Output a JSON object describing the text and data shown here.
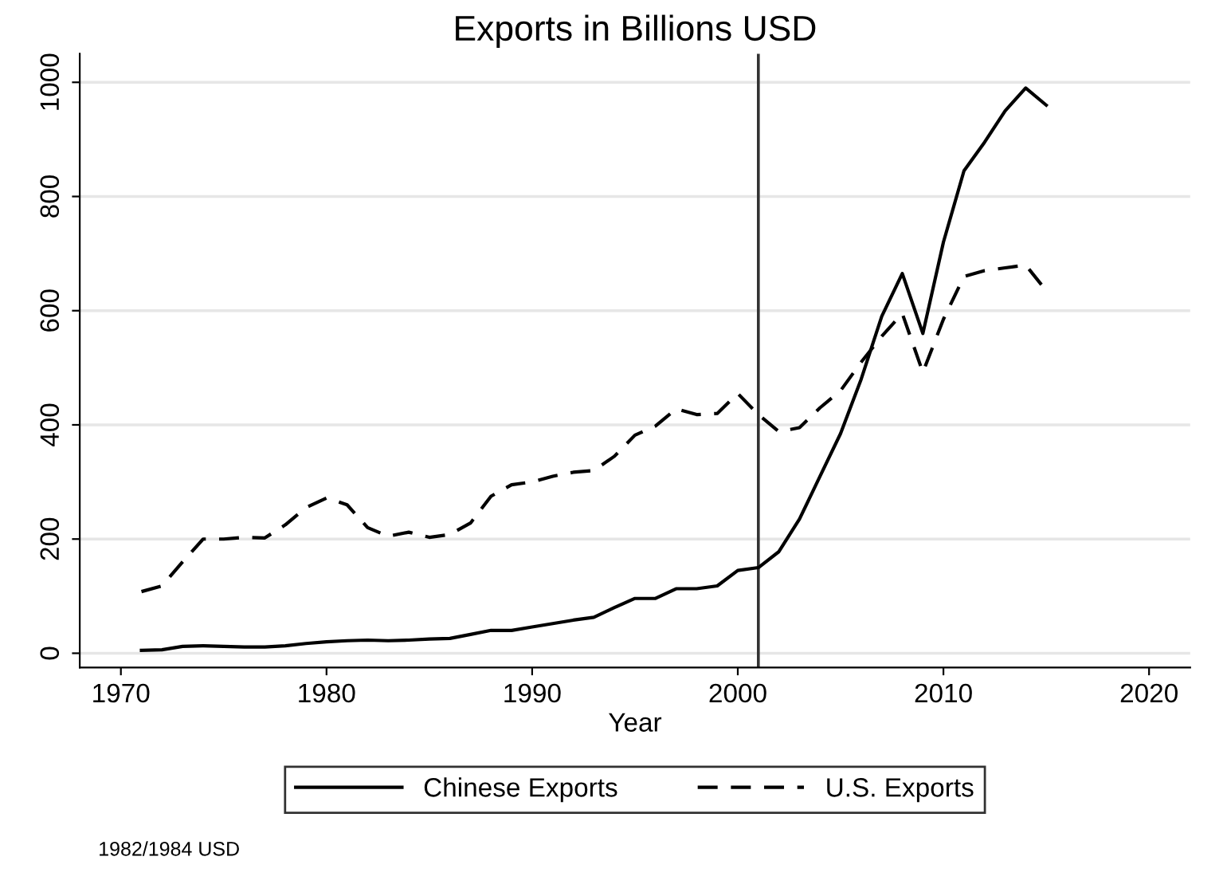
{
  "chart_data": {
    "type": "line",
    "title": "Exports in Billions USD",
    "xlabel": "Year",
    "x": [
      1971,
      1972,
      1973,
      1974,
      1975,
      1976,
      1977,
      1978,
      1979,
      1980,
      1981,
      1982,
      1983,
      1984,
      1985,
      1986,
      1987,
      1988,
      1989,
      1990,
      1991,
      1992,
      1993,
      1994,
      1995,
      1996,
      1997,
      1998,
      1999,
      2000,
      2001,
      2002,
      2003,
      2004,
      2005,
      2006,
      2007,
      2008,
      2009,
      2010,
      2011,
      2012,
      2013,
      2014,
      2015
    ],
    "series": [
      {
        "name": "Chinese Exports",
        "color": "#000000",
        "line_style": "solid",
        "values": [
          5,
          6,
          12,
          13,
          12,
          11,
          11,
          13,
          17,
          20,
          22,
          23,
          22,
          23,
          25,
          26,
          33,
          40,
          40,
          46,
          52,
          58,
          63,
          80,
          96,
          96,
          113,
          113,
          118,
          145,
          150,
          178,
          235,
          310,
          385,
          480,
          590,
          665,
          560,
          720,
          845,
          895,
          950,
          990,
          960
        ]
      },
      {
        "name": "U.S. Exports",
        "color": "#000000",
        "line_style": "dashed",
        "values": [
          108,
          118,
          160,
          200,
          200,
          203,
          202,
          225,
          255,
          272,
          260,
          220,
          205,
          212,
          203,
          208,
          228,
          275,
          295,
          300,
          310,
          317,
          320,
          345,
          382,
          398,
          428,
          418,
          420,
          455,
          418,
          388,
          395,
          430,
          460,
          510,
          555,
          595,
          492,
          585,
          660,
          670,
          675,
          680,
          635
        ]
      }
    ],
    "xlim": [
      1968,
      2022
    ],
    "xticks": [
      1970,
      1980,
      1990,
      2000,
      2010,
      2020
    ],
    "ylim": [
      -25,
      1050
    ],
    "yticks": [
      0,
      200,
      400,
      600,
      800,
      1000
    ],
    "ref_lines": [
      {
        "axis": "x",
        "value": 2001,
        "color": "#333333"
      }
    ],
    "grid": "y",
    "legend": "bottom",
    "marker": "none",
    "annotations": [
      "1982/1984 USD"
    ]
  }
}
